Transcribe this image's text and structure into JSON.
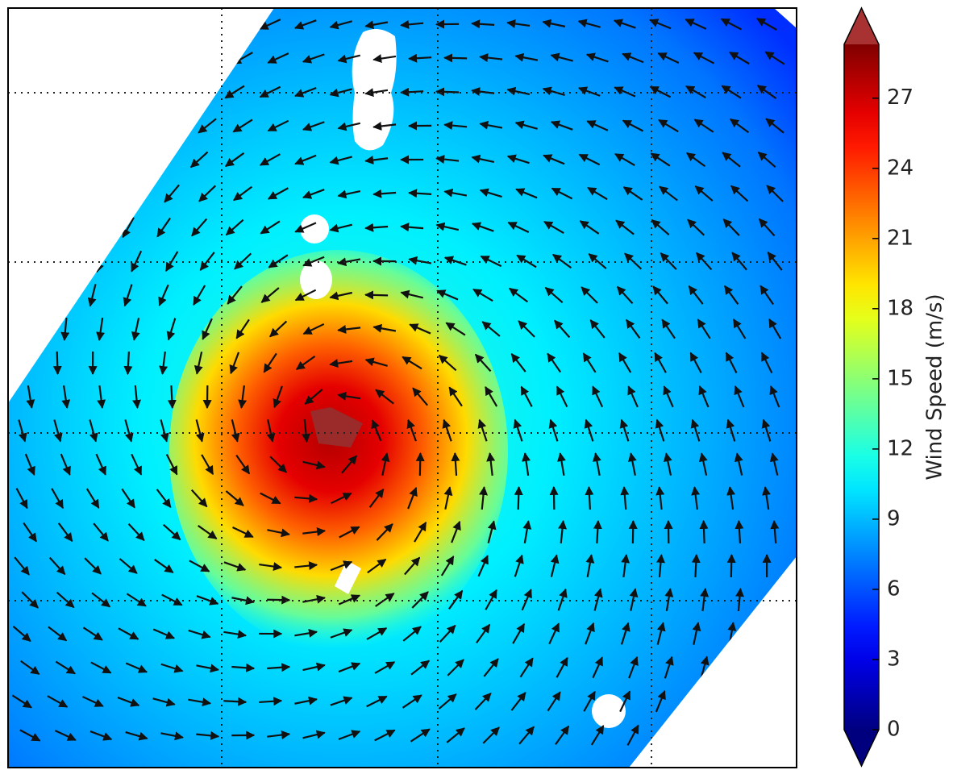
{
  "chart_data": {
    "type": "vector-field",
    "colorbar": {
      "label": "Wind Speed (m/s)",
      "clim": [
        0,
        29.3
      ],
      "ticks": [
        0,
        3,
        6,
        9,
        12,
        15,
        18,
        21,
        24,
        27
      ],
      "colormap": "jet",
      "extend": "both"
    }
  }
}
